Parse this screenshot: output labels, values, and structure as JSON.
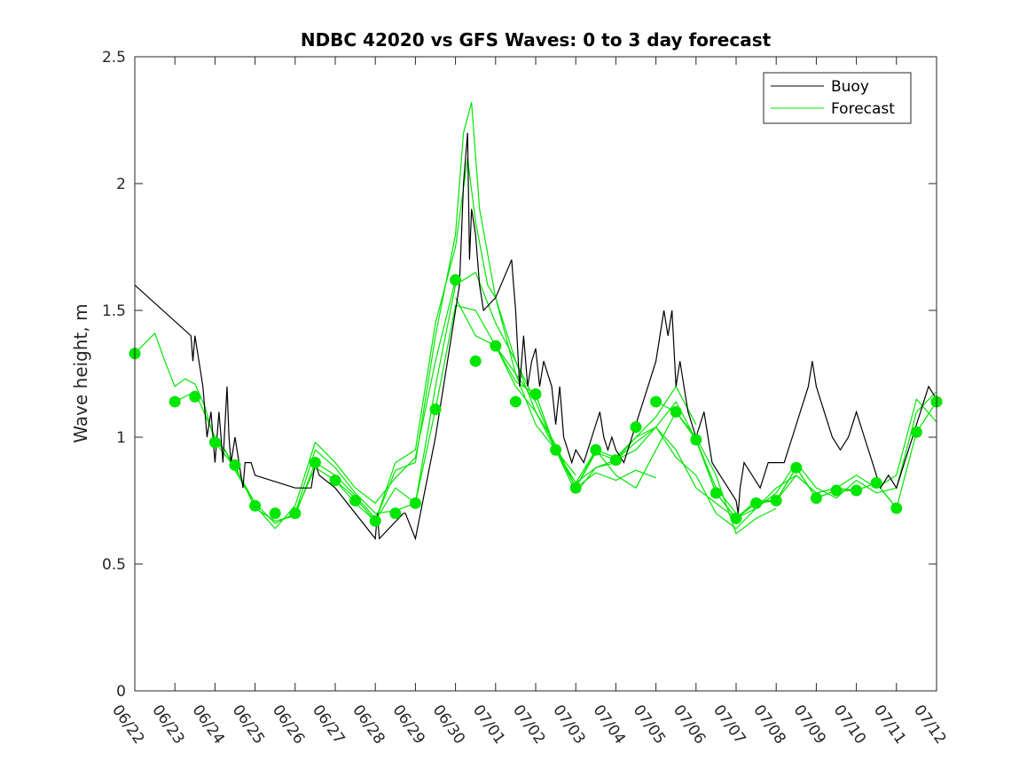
{
  "chart_data": {
    "type": "line",
    "title": "NDBC 42020 vs GFS Waves: 0 to 3 day forecast",
    "xlabel": "",
    "ylabel": "Wave height, m",
    "xlim": [
      0,
      20
    ],
    "ylim": [
      0,
      2.5
    ],
    "x_ticks": [
      {
        "pos": 0,
        "label": "06/22"
      },
      {
        "pos": 1,
        "label": "06/23"
      },
      {
        "pos": 2,
        "label": "06/24"
      },
      {
        "pos": 3,
        "label": "06/25"
      },
      {
        "pos": 4,
        "label": "06/26"
      },
      {
        "pos": 5,
        "label": "06/27"
      },
      {
        "pos": 6,
        "label": "06/28"
      },
      {
        "pos": 7,
        "label": "06/29"
      },
      {
        "pos": 8,
        "label": "06/30"
      },
      {
        "pos": 9,
        "label": "07/01"
      },
      {
        "pos": 10,
        "label": "07/02"
      },
      {
        "pos": 11,
        "label": "07/03"
      },
      {
        "pos": 12,
        "label": "07/04"
      },
      {
        "pos": 13,
        "label": "07/05"
      },
      {
        "pos": 14,
        "label": "07/06"
      },
      {
        "pos": 15,
        "label": "07/07"
      },
      {
        "pos": 16,
        "label": "07/08"
      },
      {
        "pos": 17,
        "label": "07/09"
      },
      {
        "pos": 18,
        "label": "07/10"
      },
      {
        "pos": 19,
        "label": "07/11"
      },
      {
        "pos": 20,
        "label": "07/12"
      }
    ],
    "y_ticks": [
      {
        "value": 0,
        "label": "0"
      },
      {
        "value": 0.5,
        "label": "0.5"
      },
      {
        "value": 1,
        "label": "1"
      },
      {
        "value": 1.5,
        "label": "1.5"
      },
      {
        "value": 2,
        "label": "2"
      },
      {
        "value": 2.5,
        "label": "2.5"
      }
    ],
    "grid": false,
    "legend": {
      "position": "top-right",
      "entries": [
        {
          "label": "Buoy",
          "color": "#000000"
        },
        {
          "label": "Forecast",
          "color": "#00e600"
        }
      ]
    },
    "buoy": {
      "name": "Buoy",
      "color": "#000000",
      "x": [
        0,
        1.4,
        1.45,
        1.5,
        1.6,
        1.7,
        1.8,
        1.9,
        2.0,
        2.1,
        2.15,
        2.2,
        2.3,
        2.35,
        2.4,
        2.5,
        2.6,
        2.7,
        2.75,
        2.8,
        2.9,
        3.0,
        4.0,
        4.4,
        4.5,
        4.6,
        5.0,
        6.0,
        6.05,
        6.1,
        6.7,
        6.75,
        7.0,
        7.5,
        8.0,
        8.1,
        8.2,
        8.3,
        8.35,
        8.4,
        8.5,
        8.6,
        8.7,
        9.0,
        9.4,
        9.45,
        9.5,
        9.6,
        9.7,
        9.8,
        9.9,
        10.0,
        10.1,
        10.2,
        10.4,
        10.5,
        10.6,
        10.7,
        10.8,
        10.9,
        11.0,
        11.2,
        11.4,
        11.6,
        11.7,
        11.8,
        11.9,
        12.0,
        12.2,
        12.4,
        12.6,
        12.8,
        13.0,
        13.1,
        13.2,
        13.3,
        13.4,
        13.5,
        13.6,
        13.7,
        13.8,
        14.0,
        14.2,
        14.4,
        14.6,
        14.8,
        15.0,
        15.05,
        15.1,
        15.2,
        15.4,
        15.6,
        15.8,
        16.0,
        16.2,
        16.4,
        16.6,
        16.8,
        16.9,
        17.0,
        17.2,
        17.4,
        17.6,
        17.8,
        18.0,
        18.2,
        18.4,
        18.6,
        18.8,
        19.0,
        19.2,
        19.4,
        19.6,
        19.8,
        20.0
      ],
      "y": [
        1.6,
        1.4,
        1.3,
        1.4,
        1.3,
        1.2,
        1.0,
        1.1,
        0.9,
        1.1,
        1.0,
        0.9,
        1.2,
        1.0,
        0.9,
        1.0,
        0.9,
        0.8,
        0.9,
        0.9,
        0.9,
        0.85,
        0.8,
        0.8,
        0.9,
        0.85,
        0.8,
        0.6,
        0.7,
        0.6,
        0.7,
        0.7,
        0.6,
        1.0,
        1.5,
        1.6,
        2.0,
        2.2,
        1.7,
        1.9,
        1.8,
        1.6,
        1.5,
        1.55,
        1.7,
        1.6,
        1.5,
        1.2,
        1.4,
        1.2,
        1.3,
        1.35,
        1.2,
        1.3,
        1.2,
        1.05,
        1.2,
        1.0,
        0.95,
        0.9,
        0.95,
        0.9,
        1.0,
        1.1,
        1.0,
        0.95,
        1.0,
        0.95,
        0.9,
        1.0,
        1.1,
        1.2,
        1.3,
        1.4,
        1.5,
        1.4,
        1.5,
        1.2,
        1.3,
        1.2,
        1.1,
        1.0,
        1.1,
        0.9,
        0.85,
        0.8,
        0.75,
        0.7,
        0.8,
        0.9,
        0.85,
        0.8,
        0.9,
        0.9,
        0.9,
        1.0,
        1.1,
        1.2,
        1.3,
        1.2,
        1.1,
        1.0,
        0.95,
        1.0,
        1.1,
        1.0,
        0.9,
        0.8,
        0.85,
        0.8,
        0.9,
        1.0,
        1.1,
        1.2,
        1.15
      ]
    },
    "forecast_lines": [
      {
        "name": "Forecast",
        "x": [
          0,
          0.25,
          0.5,
          0.75,
          1.0,
          1.25,
          1.5,
          1.75,
          2.0,
          2.25,
          2.5,
          2.75,
          3.0
        ],
        "y": [
          1.33,
          1.37,
          1.41,
          1.3,
          1.2,
          1.23,
          1.21,
          1.12,
          0.98,
          0.95,
          0.87,
          0.8,
          0.74
        ]
      },
      {
        "name": "Forecast",
        "x": [
          1.0,
          1.5,
          2.0,
          2.5,
          3.0,
          3.5,
          4.0,
          4.5,
          5.0,
          5.5,
          6.0
        ],
        "y": [
          1.14,
          1.18,
          1.0,
          0.89,
          0.72,
          0.67,
          0.69,
          0.9,
          0.85,
          0.77,
          0.68
        ]
      },
      {
        "name": "Forecast",
        "x": [
          2.0,
          2.5,
          3.0,
          3.5,
          4.0,
          4.5,
          5.0,
          5.5,
          6.0,
          6.5,
          7.0
        ],
        "y": [
          0.98,
          0.88,
          0.74,
          0.66,
          0.7,
          0.95,
          0.88,
          0.78,
          0.7,
          0.71,
          0.74
        ]
      },
      {
        "name": "Forecast",
        "x": [
          3.0,
          3.5,
          4.0,
          4.5,
          5.0,
          5.5,
          6.0,
          6.5,
          7.0,
          7.5,
          8.0
        ],
        "y": [
          0.73,
          0.64,
          0.73,
          0.98,
          0.9,
          0.8,
          0.74,
          0.84,
          0.92,
          1.3,
          1.62
        ]
      },
      {
        "name": "Forecast",
        "x": [
          4.0,
          4.5,
          5.0,
          5.5,
          6.0,
          6.5,
          7.0,
          7.5,
          8.0,
          8.2,
          8.4,
          8.6,
          9.0,
          9.5,
          10.0
        ],
        "y": [
          0.7,
          0.88,
          0.83,
          0.74,
          0.67,
          0.87,
          0.9,
          1.4,
          1.8,
          2.2,
          2.32,
          1.9,
          1.55,
          1.3,
          1.14
        ]
      },
      {
        "name": "Forecast",
        "x": [
          5.0,
          5.5,
          6.0,
          6.5,
          7.0,
          7.5,
          8.0,
          8.3,
          8.5,
          8.8,
          9.0,
          9.5,
          10.0,
          10.5,
          11.0
        ],
        "y": [
          0.83,
          0.76,
          0.67,
          0.9,
          0.95,
          1.45,
          1.75,
          2.1,
          1.85,
          1.6,
          1.55,
          1.25,
          1.05,
          0.95,
          0.85
        ]
      },
      {
        "name": "Forecast",
        "x": [
          6.0,
          6.5,
          7.0,
          7.5,
          8.0,
          8.5,
          9.0,
          9.5,
          10.0,
          10.5,
          11.0,
          11.5,
          12.0
        ],
        "y": [
          0.67,
          0.8,
          0.74,
          1.2,
          1.6,
          1.65,
          1.45,
          1.3,
          1.1,
          0.95,
          0.82,
          0.88,
          0.9
        ]
      },
      {
        "name": "Forecast",
        "x": [
          7.0,
          7.5,
          8.0,
          8.5,
          9.0,
          9.5,
          10.0,
          10.5,
          11.0,
          11.5,
          12.0,
          12.5,
          13.0
        ],
        "y": [
          0.74,
          1.11,
          1.52,
          1.5,
          1.36,
          1.2,
          1.1,
          0.97,
          0.8,
          0.86,
          0.83,
          0.87,
          0.84
        ]
      },
      {
        "name": "Forecast",
        "x": [
          8.0,
          8.5,
          9.0,
          9.5,
          10.0,
          10.5,
          11.0,
          11.5,
          12.0,
          12.5,
          13.0,
          13.5,
          14.0
        ],
        "y": [
          1.55,
          1.4,
          1.36,
          1.25,
          1.14,
          0.95,
          0.82,
          0.95,
          0.92,
          1.0,
          1.08,
          1.2,
          1.05
        ]
      },
      {
        "name": "Forecast",
        "x": [
          9.0,
          9.5,
          10.0,
          10.5,
          11.0,
          11.5,
          12.0,
          12.5,
          13.0,
          13.5,
          14.0,
          14.5,
          15.0
        ],
        "y": [
          1.36,
          1.22,
          1.17,
          0.95,
          0.78,
          0.88,
          0.91,
          0.95,
          1.04,
          1.14,
          0.99,
          0.8,
          0.7
        ]
      },
      {
        "name": "Forecast",
        "x": [
          10.0,
          10.5,
          11.0,
          11.5,
          12.0,
          12.5,
          13.0,
          13.5,
          14.0,
          14.5,
          15.0,
          15.5,
          16.0
        ],
        "y": [
          1.17,
          0.95,
          0.8,
          0.95,
          0.85,
          0.8,
          0.95,
          1.1,
          1.0,
          0.85,
          0.62,
          0.68,
          0.72
        ]
      },
      {
        "name": "Forecast",
        "x": [
          11.0,
          11.5,
          12.0,
          12.5,
          13.0,
          13.5,
          14.0,
          14.5,
          15.0,
          15.5,
          16.0,
          16.5,
          17.0
        ],
        "y": [
          0.8,
          0.94,
          0.91,
          0.98,
          1.04,
          0.95,
          0.8,
          0.74,
          0.68,
          0.74,
          0.75,
          0.88,
          0.76
        ]
      },
      {
        "name": "Forecast",
        "x": [
          12.0,
          12.5,
          13.0,
          13.5,
          14.0,
          14.5,
          15.0,
          15.5,
          16.0,
          16.5,
          17.0,
          17.5,
          18.0
        ],
        "y": [
          0.91,
          1.0,
          1.04,
          0.92,
          0.85,
          0.7,
          0.64,
          0.72,
          0.8,
          0.85,
          0.78,
          0.8,
          0.79
        ]
      },
      {
        "name": "Forecast",
        "x": [
          13.0,
          13.5,
          14.0,
          14.5,
          15.0,
          15.5,
          16.0,
          16.5,
          17.0,
          17.5,
          18.0,
          18.5,
          19.0
        ],
        "y": [
          1.14,
          1.1,
          0.99,
          0.78,
          0.68,
          0.75,
          0.75,
          0.88,
          0.76,
          0.79,
          0.79,
          0.82,
          0.72
        ]
      },
      {
        "name": "Forecast",
        "x": [
          14.0,
          14.5,
          15.0,
          15.5,
          16.0,
          16.5,
          17.0,
          17.5,
          18.0,
          18.5,
          19.0,
          19.5,
          20.0
        ],
        "y": [
          0.99,
          0.78,
          0.68,
          0.74,
          0.75,
          0.88,
          0.76,
          0.79,
          0.79,
          0.82,
          0.72,
          1.02,
          1.14
        ]
      },
      {
        "name": "Forecast",
        "x": [
          15.0,
          15.5,
          16.0,
          16.5,
          17.0,
          17.5,
          18.0,
          18.5,
          19.0,
          19.5,
          20.0
        ],
        "y": [
          0.68,
          0.72,
          0.78,
          0.9,
          0.8,
          0.76,
          0.83,
          0.78,
          0.8,
          1.1,
          1.18
        ]
      },
      {
        "name": "Forecast",
        "x": [
          16.0,
          16.5,
          17.0,
          17.5,
          18.0,
          18.5,
          19.0,
          19.5,
          20.0
        ],
        "y": [
          0.75,
          0.85,
          0.78,
          0.8,
          0.85,
          0.8,
          0.85,
          1.15,
          1.06
        ]
      }
    ],
    "forecast_points": {
      "name": "Forecast",
      "color": "#00e600",
      "x": [
        0,
        1.0,
        1.5,
        2.0,
        2.5,
        3.0,
        3.5,
        4.0,
        4.5,
        5.0,
        5.5,
        6.0,
        6.5,
        7.0,
        7.5,
        8.0,
        8.5,
        9.0,
        9.5,
        10.0,
        10.5,
        11.0,
        11.5,
        12.0,
        12.5,
        13.0,
        13.5,
        14.0,
        14.5,
        15.0,
        15.5,
        16.0,
        16.5,
        17.0,
        17.5,
        18.0,
        18.5,
        19.0,
        19.5,
        20.0
      ],
      "y": [
        1.33,
        1.14,
        1.16,
        0.98,
        0.89,
        0.73,
        0.7,
        0.7,
        0.9,
        0.83,
        0.75,
        0.67,
        0.7,
        0.74,
        1.11,
        1.62,
        1.3,
        1.36,
        1.14,
        1.17,
        0.95,
        0.8,
        0.95,
        0.91,
        1.04,
        1.14,
        1.1,
        0.99,
        0.78,
        0.68,
        0.74,
        0.75,
        0.88,
        0.76,
        0.79,
        0.79,
        0.82,
        0.72,
        1.02,
        1.14
      ]
    }
  }
}
